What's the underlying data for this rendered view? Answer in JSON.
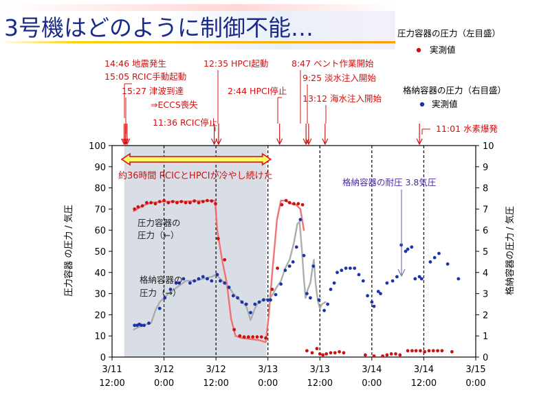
{
  "title": "3号機はどのように制御不能…",
  "legend": {
    "rpv_title": "圧力容器の圧力（左目盛）",
    "rpv_item": "実測値",
    "pcv_title": "格納容器の圧力（右目盛）",
    "pcv_item": "実測値"
  },
  "colors": {
    "rpv": "#cc1111",
    "pcv": "#1a33aa",
    "rpv_line": "#f06a6a",
    "pcv_line": "#a9a9a9",
    "shade": "#d9dde6",
    "event": "#d01010",
    "bar_fill": "#ffff66"
  },
  "events": [
    {
      "id": "ev1",
      "label": "14:46 地震発生"
    },
    {
      "id": "ev2",
      "label": "15:05 RCIC手動起動"
    },
    {
      "id": "ev3",
      "label": "15:27 津波到達"
    },
    {
      "id": "ev4",
      "label": "⇒ECCS喪失"
    },
    {
      "id": "ev5",
      "label": "11:36 RCIC停止"
    },
    {
      "id": "ev6",
      "label": "12:35 HPCI起動"
    },
    {
      "id": "ev7",
      "label": "2:44 HPCI停止"
    },
    {
      "id": "ev8",
      "label": "8:47 ベント作業開始"
    },
    {
      "id": "ev9",
      "label": "9:25 淡水注入開始"
    },
    {
      "id": "ev10",
      "label": "13:12 海水注入開始"
    },
    {
      "id": "ev11",
      "label": "11:01 水素爆発"
    }
  ],
  "annotations": {
    "cooling": "約36時間 RCICとHPCIが冷やし続けた",
    "design_limit": "格納容器の耐圧 3.8気圧",
    "rpv_curve": [
      "圧力容器の",
      "圧力（←）"
    ],
    "pcv_curve": [
      "格納容器の",
      "圧力（→）"
    ]
  },
  "chart_data": {
    "type": "line",
    "x_unit": "hours since 3/11 12:00",
    "x_ticks": [
      {
        "value": 0,
        "line1": "3/11",
        "line2": "12:00"
      },
      {
        "value": 12,
        "line1": "3/12",
        "line2": "0:00"
      },
      {
        "value": 24,
        "line1": "3/12",
        "line2": "12:00"
      },
      {
        "value": 36,
        "line1": "3/13",
        "line2": "0:00"
      },
      {
        "value": 48,
        "line1": "3/13",
        "line2": "12:00"
      },
      {
        "value": 60,
        "line1": "3/14",
        "line2": "0:00"
      },
      {
        "value": 72,
        "line1": "3/14",
        "line2": "12:00"
      },
      {
        "value": 84,
        "line1": "3/15",
        "line2": "0:00"
      }
    ],
    "xlim": [
      0,
      84
    ],
    "ylabel_left": "圧力容器 の圧力 / 気圧",
    "ylabel_right": "格納容器の圧力 / 気圧",
    "ylim_left": [
      0,
      100
    ],
    "ylim_right": [
      0,
      10
    ],
    "yticks_left": [
      0,
      10,
      20,
      30,
      40,
      50,
      60,
      70,
      80,
      90,
      100
    ],
    "yticks_right": [
      0,
      1,
      2,
      3,
      4,
      5,
      6,
      7,
      8,
      9,
      10
    ],
    "gridlines_x": [
      12,
      24,
      36,
      48,
      60,
      72
    ],
    "shaded_range": [
      2.8,
      35.7
    ],
    "event_times": [
      2.8,
      3.1,
      3.45,
      23.6,
      24.6,
      38.7,
      44.8,
      45.4,
      49.2,
      71.0
    ],
    "cooling_range": [
      0,
      36
    ],
    "design_limit_value": 3.8,
    "series": [
      {
        "axis": "left",
        "style": "points",
        "values": [
          [
            5.2,
            70
          ],
          [
            6,
            71
          ],
          [
            7,
            71.5
          ],
          [
            8,
            73
          ],
          [
            9,
            73
          ],
          [
            10,
            72.5
          ],
          [
            11,
            73.5
          ],
          [
            12,
            74
          ],
          [
            13,
            73
          ],
          [
            14,
            73.5
          ],
          [
            15,
            73
          ],
          [
            16,
            73.5
          ],
          [
            17,
            73
          ],
          [
            18,
            73
          ],
          [
            19,
            73.8
          ],
          [
            20,
            73
          ],
          [
            21,
            73.5
          ],
          [
            22,
            74
          ],
          [
            23,
            73.8
          ],
          [
            23.9,
            72.5
          ],
          [
            24.5,
            56
          ],
          [
            26,
            46
          ],
          [
            27,
            33
          ],
          [
            28.2,
            13
          ],
          [
            29.5,
            10
          ],
          [
            30.5,
            9.5
          ],
          [
            31.5,
            9.5
          ],
          [
            32.5,
            9.5
          ],
          [
            33.5,
            9.5
          ],
          [
            34.5,
            9.5
          ],
          [
            35.5,
            9
          ],
          [
            37,
            32
          ],
          [
            38.2,
            42
          ],
          [
            39.2,
            72
          ],
          [
            40.2,
            74
          ],
          [
            41,
            73
          ],
          [
            42,
            72.5
          ],
          [
            43,
            72.5
          ],
          [
            44,
            72
          ],
          [
            45,
            3
          ],
          [
            46.2,
            2
          ],
          [
            47.3,
            4
          ],
          [
            48,
            1.5
          ],
          [
            48.7,
            1
          ],
          [
            49.5,
            1.5
          ],
          [
            50.5,
            2
          ],
          [
            51.5,
            2
          ],
          [
            52.5,
            2.5
          ],
          [
            53.5,
            2
          ],
          [
            58.5,
            1
          ],
          [
            60.5,
            0.5
          ],
          [
            62.5,
            0.5
          ],
          [
            63.5,
            1
          ],
          [
            64.5,
            1.5
          ],
          [
            65.5,
            1.5
          ],
          [
            66.5,
            1
          ],
          [
            68.3,
            3
          ],
          [
            69.3,
            3
          ],
          [
            70.2,
            3
          ],
          [
            71.2,
            3
          ],
          [
            72.2,
            2.5
          ],
          [
            73.2,
            3
          ],
          [
            74.2,
            3
          ],
          [
            75.2,
            3
          ],
          [
            76.2,
            3
          ],
          [
            78.5,
            2.5
          ]
        ]
      },
      {
        "axis": "left",
        "style": "line",
        "values": [
          [
            5,
            69
          ],
          [
            7,
            71.5
          ],
          [
            9,
            73
          ],
          [
            12,
            73.5
          ],
          [
            16,
            73.5
          ],
          [
            20,
            73.8
          ],
          [
            23.8,
            74
          ],
          [
            24.3,
            60
          ],
          [
            25.5,
            45
          ],
          [
            26.5,
            35
          ],
          [
            27.5,
            18
          ],
          [
            28.5,
            10
          ],
          [
            30,
            9
          ],
          [
            32,
            8.5
          ],
          [
            34,
            8
          ],
          [
            35.5,
            7
          ],
          [
            36.2,
            20
          ],
          [
            37,
            40
          ],
          [
            38.1,
            65
          ],
          [
            39,
            74
          ],
          [
            40,
            74
          ],
          [
            41.5,
            72.5
          ],
          [
            42.5,
            72
          ],
          [
            43.5,
            70
          ],
          [
            44.3,
            60
          ]
        ]
      },
      {
        "axis": "right",
        "style": "points",
        "values": [
          [
            5.2,
            1.5
          ],
          [
            5.8,
            1.5
          ],
          [
            6.3,
            1.55
          ],
          [
            6.8,
            1.5
          ],
          [
            7.4,
            1.5
          ],
          [
            8.5,
            1.6
          ],
          [
            11,
            2.3
          ],
          [
            12.2,
            2.8
          ],
          [
            13.5,
            3.2
          ],
          [
            14.8,
            3.5
          ],
          [
            15.5,
            3.5
          ],
          [
            16.5,
            3.7
          ],
          [
            18,
            3.5
          ],
          [
            19,
            3.6
          ],
          [
            20,
            3.7
          ],
          [
            21,
            3.8
          ],
          [
            22,
            3.7
          ],
          [
            23,
            3.6
          ],
          [
            24.3,
            3.9
          ],
          [
            25,
            3.6
          ],
          [
            26,
            3.5
          ],
          [
            27,
            3.3
          ],
          [
            28,
            2.9
          ],
          [
            29,
            2.8
          ],
          [
            30,
            2.6
          ],
          [
            31,
            2.5
          ],
          [
            32,
            2.1
          ],
          [
            33,
            2.5
          ],
          [
            34,
            2.6
          ],
          [
            35,
            2.7
          ],
          [
            36,
            2.7
          ],
          [
            36.6,
            2.7
          ],
          [
            37.8,
            2.95
          ],
          [
            39,
            3.45
          ],
          [
            40,
            4.1
          ],
          [
            41,
            4.3
          ],
          [
            41.8,
            4.5
          ],
          [
            42.6,
            5.2
          ],
          [
            43.5,
            6.5
          ],
          [
            44.3,
            4.8
          ],
          [
            45,
            3
          ],
          [
            45.8,
            2.8
          ],
          [
            46.5,
            4.3
          ],
          [
            47.8,
            2.7
          ],
          [
            49,
            2.2
          ],
          [
            49.8,
            2.5
          ],
          [
            50.5,
            3.2
          ],
          [
            51.3,
            3.5
          ],
          [
            52,
            4
          ],
          [
            53,
            4.1
          ],
          [
            54,
            4.2
          ],
          [
            55,
            4.2
          ],
          [
            56,
            4.2
          ],
          [
            57,
            3.9
          ],
          [
            58,
            3.6
          ],
          [
            59,
            2.9
          ],
          [
            60,
            2.6
          ],
          [
            60.5,
            2.4
          ],
          [
            61.5,
            3.1
          ],
          [
            62,
            3
          ],
          [
            63.5,
            3.5
          ],
          [
            64.8,
            3.6
          ],
          [
            65.8,
            3.8
          ],
          [
            66.8,
            5.3
          ],
          [
            67.8,
            5
          ],
          [
            68.3,
            5.1
          ],
          [
            69.2,
            5.2
          ],
          [
            70,
            3.7
          ],
          [
            71,
            3.8
          ],
          [
            71.5,
            3.7
          ],
          [
            73.5,
            4.5
          ],
          [
            74.5,
            4.7
          ],
          [
            75.5,
            4.9
          ],
          [
            77.5,
            4.4
          ],
          [
            80,
            3.7
          ]
        ]
      },
      {
        "axis": "right",
        "style": "line",
        "values": [
          [
            5,
            1.3
          ],
          [
            7,
            1.5
          ],
          [
            9,
            1.6
          ],
          [
            10,
            2.2
          ],
          [
            11,
            2.6
          ],
          [
            13,
            3.0
          ],
          [
            15,
            3.3
          ],
          [
            17,
            3.6
          ],
          [
            19,
            3.6
          ],
          [
            21,
            3.7
          ],
          [
            23,
            3.8
          ],
          [
            24,
            3.9
          ],
          [
            25,
            3.7
          ],
          [
            26,
            3.5
          ],
          [
            27,
            3.3
          ],
          [
            28,
            3.0
          ],
          [
            29,
            2.8
          ],
          [
            30,
            2.6
          ],
          [
            31,
            2.4
          ],
          [
            32,
            1.75
          ],
          [
            33,
            2.3
          ],
          [
            33.5,
            2.5
          ],
          [
            34.2,
            2.6
          ],
          [
            35,
            2.75
          ],
          [
            36.2,
            2.7
          ],
          [
            37.2,
            3.0
          ],
          [
            38,
            3.3
          ],
          [
            39,
            3.6
          ],
          [
            40,
            4.2
          ],
          [
            41,
            4.6
          ],
          [
            42,
            5.4
          ],
          [
            42.8,
            6.3
          ],
          [
            43.3,
            6.4
          ],
          [
            43.8,
            5.2
          ],
          [
            44.3,
            3.7
          ],
          [
            44.7,
            2.8
          ],
          [
            45.2,
            3.2
          ],
          [
            45.8,
            3.5
          ],
          [
            46.2,
            4.1
          ],
          [
            46.6,
            4.6
          ],
          [
            47,
            3.5
          ],
          [
            47.5,
            2.7
          ],
          [
            48,
            2.3
          ],
          [
            48.5,
            2.5
          ],
          [
            49.3,
            2.6
          ]
        ]
      }
    ]
  }
}
